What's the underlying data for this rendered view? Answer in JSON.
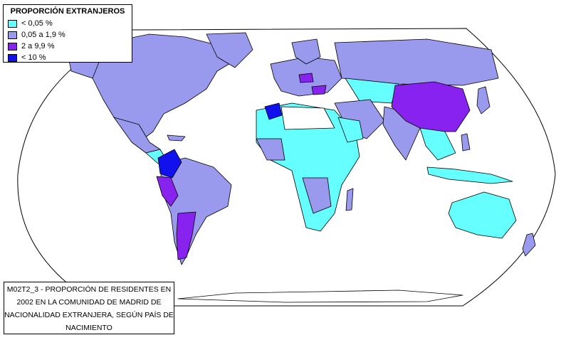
{
  "legend": {
    "title": "PROPORCIÓN EXTRANJEROS",
    "items": [
      {
        "label": "< 0,05 %",
        "color": "#66ffff"
      },
      {
        "label": "0,05 a 1,9 %",
        "color": "#9999ee"
      },
      {
        "label": "2 a 9,9 %",
        "color": "#8822ee"
      },
      {
        "label": "< 10 %",
        "color": "#1111ee"
      }
    ]
  },
  "caption": {
    "line1": "M02T2_3 - PROPORCIÓN DE RESIDENTES EN",
    "line2": "2002 EN LA COMUNIDAD DE MADRID DE",
    "line3": "NACIONALIDAD EXTRANJERA, SEGÚN PAÍS DE",
    "line4": "NACIMIENTO"
  }
}
